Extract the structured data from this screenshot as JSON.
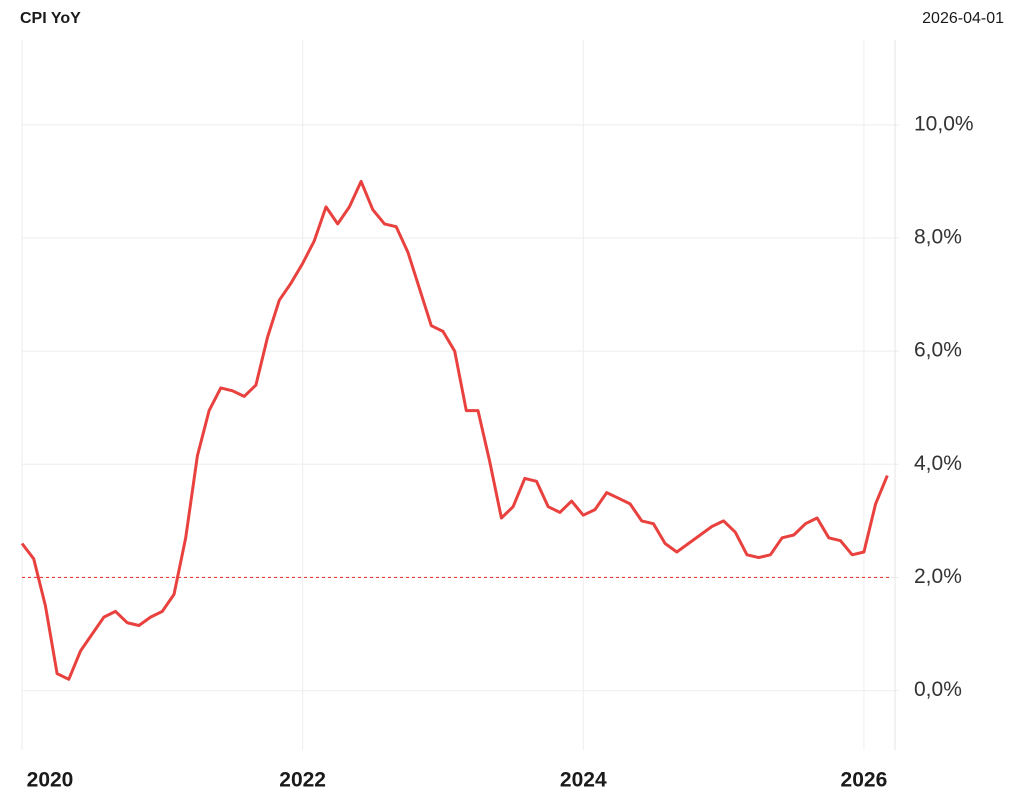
{
  "chart_data": {
    "type": "line",
    "title": "CPI YoY",
    "date": "2026-04-01",
    "x": [
      "2020-01-01",
      "2020-02-01",
      "2020-03-01",
      "2020-04-01",
      "2020-05-01",
      "2020-06-01",
      "2020-07-01",
      "2020-08-01",
      "2020-09-01",
      "2020-10-01",
      "2020-11-01",
      "2020-12-01",
      "2021-01-01",
      "2021-02-01",
      "2021-03-01",
      "2021-04-01",
      "2021-05-01",
      "2021-06-01",
      "2021-07-01",
      "2021-08-01",
      "2021-09-01",
      "2021-10-01",
      "2021-11-01",
      "2021-12-01",
      "2022-01-01",
      "2022-02-01",
      "2022-03-01",
      "2022-04-01",
      "2022-05-01",
      "2022-06-01",
      "2022-07-01",
      "2022-08-01",
      "2022-09-01",
      "2022-10-01",
      "2022-11-01",
      "2022-12-01",
      "2023-01-01",
      "2023-02-01",
      "2023-03-01",
      "2023-04-01",
      "2023-05-01",
      "2023-06-01",
      "2023-07-01",
      "2023-08-01",
      "2023-09-01",
      "2023-10-01",
      "2023-11-01",
      "2023-12-01",
      "2024-01-01",
      "2024-02-01",
      "2024-03-01",
      "2024-04-01",
      "2024-05-01",
      "2024-06-01",
      "2024-07-01",
      "2024-08-01",
      "2024-09-01",
      "2024-10-01",
      "2024-11-01",
      "2024-12-01",
      "2025-01-01",
      "2025-02-01",
      "2025-03-01",
      "2025-04-01",
      "2025-05-01",
      "2025-06-01",
      "2025-07-01",
      "2025-08-01",
      "2025-09-01",
      "2025-10-01",
      "2025-11-01",
      "2025-12-01",
      "2026-01-01",
      "2026-02-01",
      "2026-03-01"
    ],
    "series": [
      {
        "name": "CPI YoY",
        "color": "#e8413e",
        "values": [
          2.6,
          2.33,
          1.5,
          0.3,
          0.2,
          0.7,
          1.0,
          1.3,
          1.4,
          1.2,
          1.15,
          1.3,
          1.4,
          1.7,
          2.7,
          4.15,
          4.95,
          5.35,
          5.3,
          5.2,
          5.4,
          6.25,
          6.9,
          7.2,
          7.55,
          7.95,
          8.55,
          8.25,
          8.55,
          9.0,
          8.5,
          8.25,
          8.2,
          7.75,
          7.1,
          6.45,
          6.35,
          6.0,
          4.95,
          4.95,
          4.05,
          3.05,
          3.25,
          3.75,
          3.7,
          3.25,
          3.15,
          3.35,
          3.1,
          3.2,
          3.5,
          3.4,
          3.3,
          3.0,
          2.95,
          2.6,
          2.45,
          2.6,
          2.75,
          2.9,
          3.0,
          2.8,
          2.4,
          2.35,
          2.4,
          2.7,
          2.75,
          2.95,
          3.05,
          2.7,
          2.65,
          2.4,
          2.45,
          3.3,
          3.8
        ]
      }
    ],
    "reference_value": 2,
    "reference_color": "#e8413e",
    "xlim": [
      2020,
      2026.25
    ],
    "xticks": [
      2020,
      2022,
      2024,
      2026
    ],
    "ylim": [
      -1.05,
      11.5
    ],
    "yticks": [
      {
        "value": 0,
        "label": "0,0%"
      },
      {
        "value": 2,
        "label": "2,0%"
      },
      {
        "value": 4,
        "label": "4,0%"
      },
      {
        "value": 6,
        "label": "6,0%"
      },
      {
        "value": 8,
        "label": "8,0%"
      },
      {
        "value": 10,
        "label": "10,0%"
      }
    ],
    "grid": true
  }
}
